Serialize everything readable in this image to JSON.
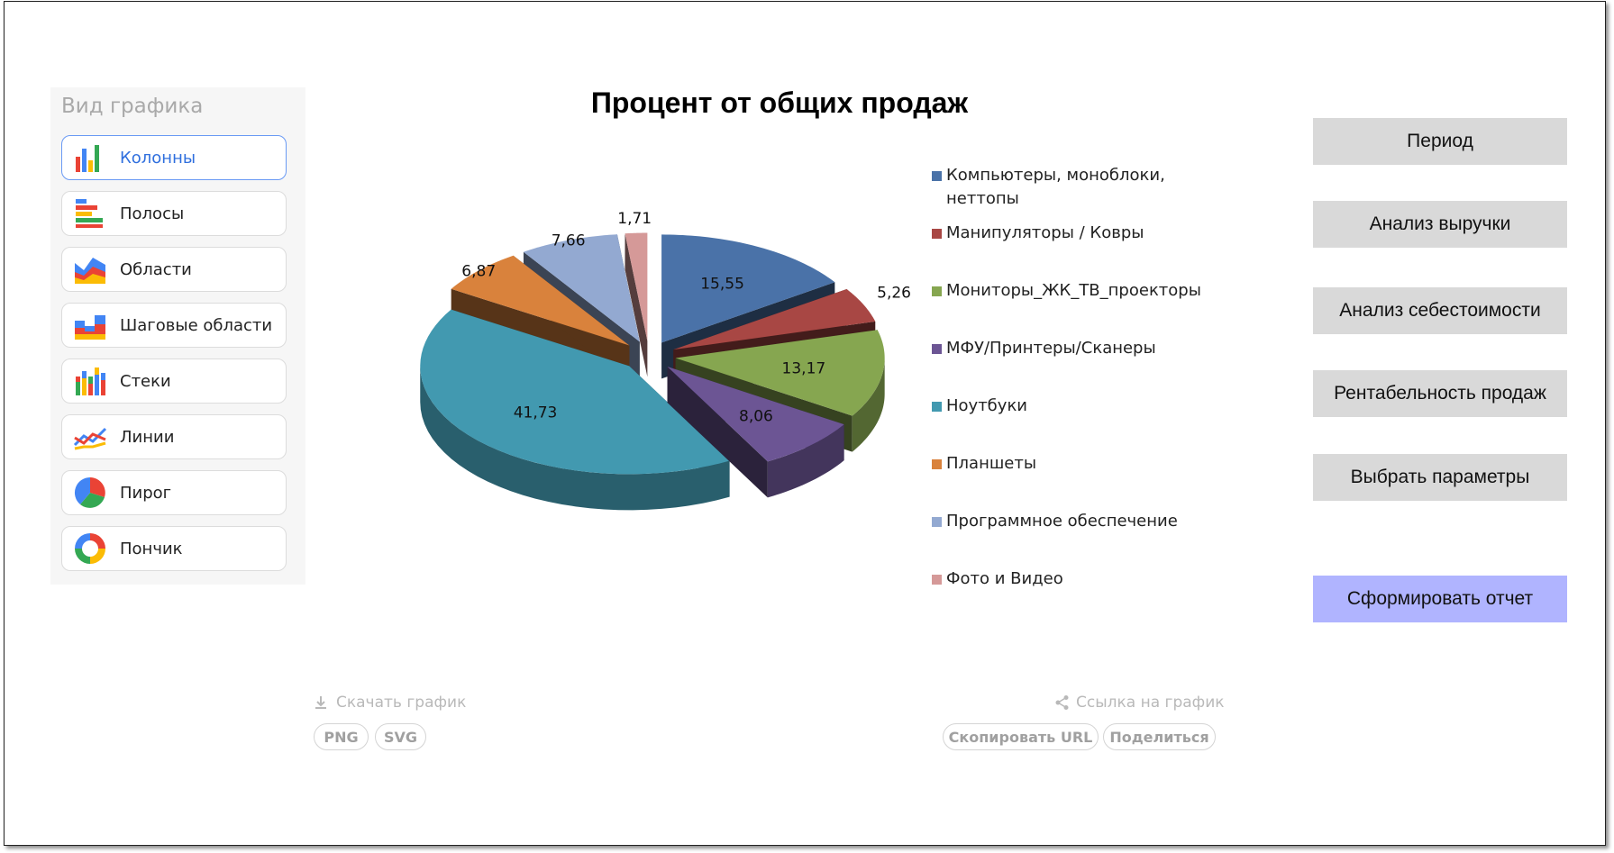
{
  "sidebar": {
    "title": "Вид графика",
    "items": [
      {
        "label": "Колонны"
      },
      {
        "label": "Полосы"
      },
      {
        "label": "Области"
      },
      {
        "label": "Шаговые области"
      },
      {
        "label": "Стеки"
      },
      {
        "label": "Линии"
      },
      {
        "label": "Пирог"
      },
      {
        "label": "Пончик"
      }
    ]
  },
  "chart_data": {
    "type": "pie",
    "title": "Процент от общих продаж",
    "labels": [
      "Компьютеры, моноблоки, неттопы",
      "Манипуляторы / Ковры",
      "Мониторы_ЖК_ТВ_проекторы",
      "МФУ/Принтеры/Сканеры",
      "Ноутбуки",
      "Планшеты",
      "Программное обеспечение",
      "Фото и Видео"
    ],
    "values": [
      15.55,
      5.26,
      13.17,
      8.06,
      41.73,
      6.87,
      7.66,
      1.71
    ],
    "value_labels": [
      "15,55",
      "5,26",
      "13,17",
      "8,06",
      "41,73",
      "6,87",
      "7,66",
      "1,71"
    ],
    "colors": [
      "#4a72a8",
      "#a84744",
      "#86a650",
      "#6c5594",
      "#4299b0",
      "#d9823c",
      "#93a9d1",
      "#d59998"
    ],
    "legend_position": "right",
    "style": "3d-exploded"
  },
  "actions": {
    "period": "Период",
    "revenue": "Анализ выручки",
    "cost": "Анализ себестоимости",
    "profitability": "Рентабельность продаж",
    "params": "Выбрать параметры",
    "report": "Сформировать отчет"
  },
  "download": {
    "label": "Скачать график",
    "png": "PNG",
    "svg": "SVG"
  },
  "share": {
    "label": "Ссылка на график",
    "copy": "Скопировать URL",
    "share": "Поделиться"
  }
}
